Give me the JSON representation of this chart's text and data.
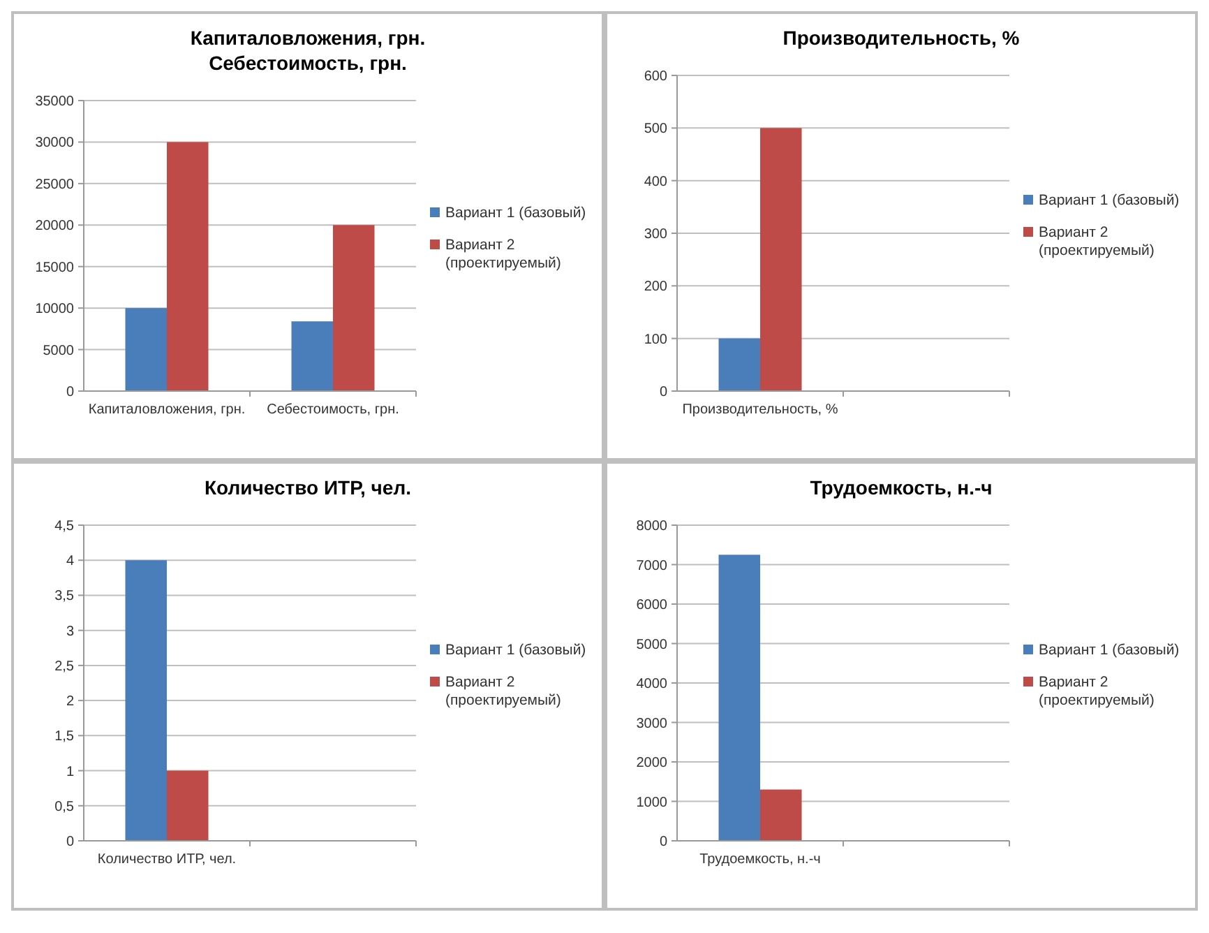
{
  "chart_data": [
    {
      "type": "bar",
      "title": "Капиталовложения, грн.\nСебестоимость, грн.",
      "categories": [
        "Капиталовложения, грн.",
        "Себестоимость, грн."
      ],
      "series": [
        {
          "name": "Вариант 1 (базовый)",
          "color": "#4a7ebb",
          "values": [
            10000,
            8400
          ]
        },
        {
          "name": "Вариант 2 (проектируемый)",
          "color": "#be4b48",
          "values": [
            30000,
            20000
          ]
        }
      ],
      "ylim": [
        0,
        35000
      ],
      "yticks": [
        0,
        5000,
        10000,
        15000,
        20000,
        25000,
        30000,
        35000
      ],
      "grid": "y",
      "legend": "right"
    },
    {
      "type": "bar",
      "title": "Производительность, %",
      "categories": [
        "Производительность, %",
        null
      ],
      "series": [
        {
          "name": "Вариант 1 (базовый)",
          "color": "#4a7ebb",
          "values": [
            100,
            null
          ]
        },
        {
          "name": "Вариант 2 (проектируемый)",
          "color": "#be4b48",
          "values": [
            500,
            null
          ]
        }
      ],
      "ylim": [
        0,
        600
      ],
      "yticks": [
        0,
        100,
        200,
        300,
        400,
        500,
        600
      ],
      "grid": "y",
      "legend": "right"
    },
    {
      "type": "bar",
      "title": "Количество ИТР, чел.",
      "categories": [
        "Количество ИТР, чел.",
        null
      ],
      "series": [
        {
          "name": "Вариант 1 (базовый)",
          "color": "#4a7ebb",
          "values": [
            4,
            null
          ]
        },
        {
          "name": "Вариант 2 (проектируемый)",
          "color": "#be4b48",
          "values": [
            1,
            null
          ]
        }
      ],
      "ylim": [
        0,
        4.5
      ],
      "yticks": [
        0,
        {
          "value": 0.5,
          "label": "0,5"
        },
        1,
        {
          "value": 1.5,
          "label": "1,5"
        },
        2,
        {
          "value": 2.5,
          "label": "2,5"
        },
        3,
        {
          "value": 3.5,
          "label": "3,5"
        },
        4,
        {
          "value": 4.5,
          "label": "4,5"
        }
      ],
      "grid": "y",
      "legend": "right"
    },
    {
      "type": "bar",
      "title": "Трудоемкость, н.-ч",
      "categories": [
        "Трудоемкость, н.-ч",
        null
      ],
      "series": [
        {
          "name": "Вариант 1 (базовый)",
          "color": "#4a7ebb",
          "values": [
            7250,
            null
          ]
        },
        {
          "name": "Вариант 2 (проектируемый)",
          "color": "#be4b48",
          "values": [
            1300,
            null
          ]
        }
      ],
      "ylim": [
        0,
        8000
      ],
      "yticks": [
        0,
        1000,
        2000,
        3000,
        4000,
        5000,
        6000,
        7000,
        8000
      ],
      "grid": "y",
      "legend": "right"
    }
  ]
}
